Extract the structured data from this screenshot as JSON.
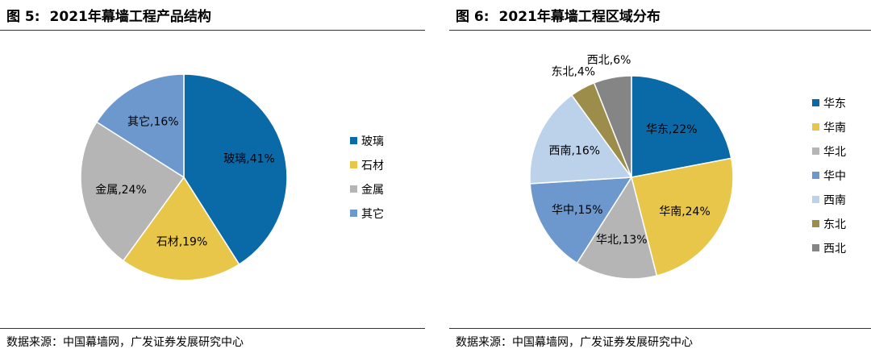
{
  "panels": [
    {
      "figure_label": "图 5:",
      "title": "2021年幕墙工程产品结构",
      "source": "数据来源：中国幕墙网，广发证券发展研究中心"
    },
    {
      "figure_label": "图 6:",
      "title": "2021年幕墙工程区域分布",
      "source": "数据来源：中国幕墙网，广发证券发展研究中心"
    }
  ],
  "chart_data": [
    {
      "type": "pie",
      "title": "2021年幕墙工程产品结构",
      "legend_position": "right",
      "start": "12 o'clock, clockwise",
      "slices": [
        {
          "label": "玻璃",
          "value": 41,
          "display": "玻璃,41%",
          "color": "#0a6aa8"
        },
        {
          "label": "石材",
          "value": 19,
          "display": "石材,19%",
          "color": "#e8c64a"
        },
        {
          "label": "金属",
          "value": 24,
          "display": "金属,24%",
          "color": "#b5b5b5"
        },
        {
          "label": "其它",
          "value": 16,
          "display": "其它,16%",
          "color": "#6d98cd"
        }
      ]
    },
    {
      "type": "pie",
      "title": "2021年幕墙工程区域分布",
      "legend_position": "right",
      "start": "12 o'clock, clockwise",
      "slices": [
        {
          "label": "华东",
          "value": 22,
          "display": "华东,22%",
          "color": "#0a6aa8"
        },
        {
          "label": "华南",
          "value": 24,
          "display": "华南,24%",
          "color": "#e8c64a"
        },
        {
          "label": "华北",
          "value": 13,
          "display": "华北,13%",
          "color": "#b5b5b5"
        },
        {
          "label": "华中",
          "value": 15,
          "display": "华中,15%",
          "color": "#6d98cd"
        },
        {
          "label": "西南",
          "value": 16,
          "display": "西南,16%",
          "color": "#bcd2ea"
        },
        {
          "label": "东北",
          "value": 4,
          "display": "东北,4%",
          "color": "#9d8d4a"
        },
        {
          "label": "西北",
          "value": 6,
          "display": "西北,6%",
          "color": "#858585"
        }
      ]
    }
  ]
}
